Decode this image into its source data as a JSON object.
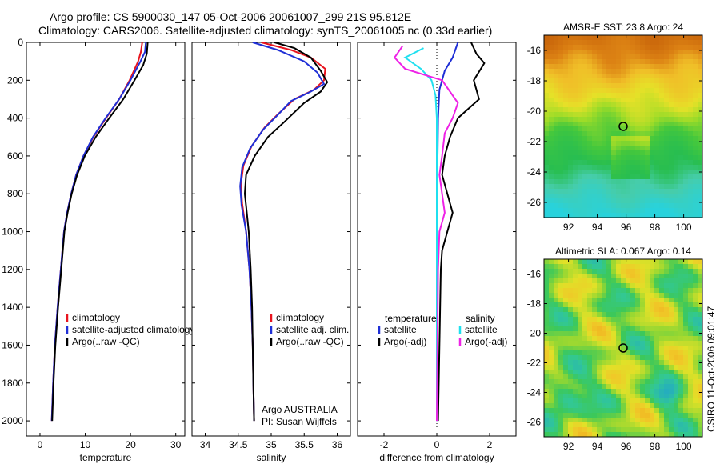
{
  "header": {
    "line1": "Argo profile: CS 5900030_147 05-Oct-2006 20061007_299 21S 95.812E",
    "line2": "Climatology: CARS2006. Satellite-adjusted climatology: synTS_20061005.nc (0.33d earlier)"
  },
  "side_label": "CSIRO 11-Oct-2006 09:01:47",
  "colors": {
    "climatology": "#e8141e",
    "satellite": "#1f2fd6",
    "argo": "#000000",
    "salinity_sat": "#1fe0ef",
    "salinity_argo": "#ee22e6"
  },
  "chart_data": [
    {
      "type": "line",
      "xlabel": "temperature",
      "ylabel": "",
      "xlim": [
        -3,
        32
      ],
      "ylim": [
        2080,
        0
      ],
      "y_reversed": true,
      "x_ticks": [
        0,
        10,
        20,
        30
      ],
      "y_ticks": [
        0,
        200,
        400,
        600,
        800,
        1000,
        1200,
        1400,
        1600,
        1800,
        2000
      ],
      "legend": [
        "climatology",
        "satellite-adjusted climatology",
        "Argo(..raw -QC)"
      ],
      "series": [
        {
          "name": "climatology",
          "color": "#e8141e",
          "points": [
            [
              22.6,
              0
            ],
            [
              22.3,
              50
            ],
            [
              21.7,
              100
            ],
            [
              19.8,
              200
            ],
            [
              17.5,
              300
            ],
            [
              14.6,
              400
            ],
            [
              11.8,
              500
            ],
            [
              9.6,
              600
            ],
            [
              8,
              700
            ],
            [
              6.9,
              800
            ],
            [
              6,
              900
            ],
            [
              5.3,
              1000
            ],
            [
              4.6,
              1200
            ],
            [
              3.9,
              1400
            ],
            [
              3.3,
              1600
            ],
            [
              2.9,
              1800
            ],
            [
              2.6,
              2000
            ]
          ]
        },
        {
          "name": "satellite-adjusted climatology",
          "color": "#1f2fd6",
          "points": [
            [
              23.4,
              0
            ],
            [
              23.2,
              50
            ],
            [
              22.2,
              100
            ],
            [
              20,
              200
            ],
            [
              17.5,
              300
            ],
            [
              14.5,
              400
            ],
            [
              11.7,
              500
            ],
            [
              9.6,
              600
            ],
            [
              8,
              700
            ],
            [
              6.9,
              800
            ],
            [
              6,
              900
            ],
            [
              5.3,
              1000
            ],
            [
              4.6,
              1200
            ],
            [
              3.9,
              1400
            ],
            [
              3.3,
              1600
            ],
            [
              2.9,
              1800
            ],
            [
              2.6,
              2000
            ]
          ]
        },
        {
          "name": "Argo(..raw -QC)",
          "color": "#000000",
          "points": [
            [
              23.8,
              0
            ],
            [
              23.6,
              60
            ],
            [
              22.8,
              120
            ],
            [
              20.9,
              200
            ],
            [
              18.4,
              300
            ],
            [
              15.3,
              400
            ],
            [
              12.3,
              500
            ],
            [
              9.9,
              600
            ],
            [
              8.2,
              700
            ],
            [
              7,
              800
            ],
            [
              6.1,
              900
            ],
            [
              5.4,
              1000
            ],
            [
              4.7,
              1200
            ],
            [
              4,
              1400
            ],
            [
              3.4,
              1600
            ],
            [
              3,
              1800
            ],
            [
              2.7,
              2000
            ]
          ]
        }
      ]
    },
    {
      "type": "line",
      "xlabel": "salinity",
      "ylabel": "",
      "xlim": [
        33.8,
        36.2
      ],
      "ylim": [
        2080,
        0
      ],
      "y_reversed": true,
      "x_ticks": [
        34,
        34.5,
        35,
        35.5,
        36
      ],
      "legend": [
        "climatology",
        "satellite adj. clim.",
        "Argo(..raw -QC)"
      ],
      "annotation": [
        "Argo AUSTRALIA",
        "PI: Susan Wijffels"
      ],
      "series": [
        {
          "name": "climatology",
          "color": "#e8141e",
          "points": [
            [
              34.85,
              0
            ],
            [
              35.3,
              40
            ],
            [
              35.6,
              80
            ],
            [
              35.82,
              140
            ],
            [
              35.8,
              200
            ],
            [
              35.65,
              250
            ],
            [
              35.35,
              300
            ],
            [
              35.1,
              380
            ],
            [
              34.9,
              450
            ],
            [
              34.7,
              550
            ],
            [
              34.58,
              650
            ],
            [
              34.54,
              750
            ],
            [
              34.56,
              850
            ],
            [
              34.62,
              1000
            ],
            [
              34.67,
              1200
            ],
            [
              34.7,
              1400
            ],
            [
              34.72,
              1600
            ],
            [
              34.73,
              1800
            ],
            [
              34.74,
              2000
            ]
          ]
        },
        {
          "name": "satellite adj. clim.",
          "color": "#1f2fd6",
          "points": [
            [
              34.72,
              0
            ],
            [
              35.1,
              40
            ],
            [
              35.5,
              100
            ],
            [
              35.7,
              160
            ],
            [
              35.8,
              220
            ],
            [
              35.6,
              260
            ],
            [
              35.3,
              310
            ],
            [
              35.08,
              390
            ],
            [
              34.88,
              460
            ],
            [
              34.68,
              560
            ],
            [
              34.56,
              660
            ],
            [
              34.53,
              760
            ],
            [
              34.55,
              860
            ],
            [
              34.62,
              1000
            ],
            [
              34.67,
              1200
            ],
            [
              34.7,
              1400
            ],
            [
              34.72,
              1600
            ],
            [
              34.73,
              1800
            ],
            [
              34.74,
              2000
            ]
          ]
        },
        {
          "name": "Argo(..raw -QC)",
          "color": "#000000",
          "points": [
            [
              35.05,
              0
            ],
            [
              35.35,
              30
            ],
            [
              35.6,
              80
            ],
            [
              35.75,
              150
            ],
            [
              35.85,
              210
            ],
            [
              35.75,
              260
            ],
            [
              35.5,
              320
            ],
            [
              35.2,
              420
            ],
            [
              34.95,
              500
            ],
            [
              34.75,
              600
            ],
            [
              34.62,
              700
            ],
            [
              34.6,
              800
            ],
            [
              34.63,
              900
            ],
            [
              34.66,
              1000
            ],
            [
              34.69,
              1200
            ],
            [
              34.71,
              1400
            ],
            [
              34.72,
              1600
            ],
            [
              34.73,
              1800
            ],
            [
              34.74,
              2000
            ]
          ]
        }
      ]
    },
    {
      "type": "line",
      "xlabel": "difference from climatology",
      "ylabel": "",
      "xlim": [
        -3,
        3
      ],
      "ylim": [
        2080,
        0
      ],
      "y_reversed": true,
      "x_ticks": [
        -2,
        0,
        2
      ],
      "legend": [
        "temperature",
        "satellite",
        "Argo(-adj)",
        "salinity",
        "satellite",
        "Argo(-adj)"
      ],
      "series": [
        {
          "name": "temperature satellite",
          "color": "#1f2fd6",
          "points": [
            [
              0.8,
              0
            ],
            [
              0.6,
              80
            ],
            [
              0.3,
              150
            ],
            [
              0.1,
              250
            ],
            [
              0.05,
              400
            ],
            [
              0.02,
              700
            ],
            [
              0,
              1000
            ],
            [
              0,
              2000
            ]
          ]
        },
        {
          "name": "temperature Argo(-adj)",
          "color": "#000000",
          "points": [
            [
              1.3,
              0
            ],
            [
              1.5,
              60
            ],
            [
              1.8,
              110
            ],
            [
              1.4,
              200
            ],
            [
              1.6,
              300
            ],
            [
              0.8,
              400
            ],
            [
              0.5,
              500
            ],
            [
              0.3,
              600
            ],
            [
              0.2,
              700
            ],
            [
              0.4,
              800
            ],
            [
              0.6,
              900
            ],
            [
              0.4,
              1000
            ],
            [
              0.2,
              1100
            ],
            [
              0.15,
              1200
            ],
            [
              0.1,
              1600
            ],
            [
              0.05,
              2000
            ]
          ]
        },
        {
          "name": "salinity satellite",
          "color": "#1fe0ef",
          "points": [
            [
              -0.5,
              30
            ],
            [
              -1.2,
              80
            ],
            [
              -0.6,
              140
            ],
            [
              -0.2,
              200
            ],
            [
              -0.05,
              280
            ],
            [
              0,
              400
            ],
            [
              0,
              1000
            ],
            [
              0,
              2000
            ]
          ]
        },
        {
          "name": "salinity Argo(-adj)",
          "color": "#ee22e6",
          "points": [
            [
              -1.3,
              20
            ],
            [
              -1.6,
              80
            ],
            [
              -1.2,
              140
            ],
            [
              0.2,
              200
            ],
            [
              0.5,
              260
            ],
            [
              0.8,
              320
            ],
            [
              0.6,
              400
            ],
            [
              0.3,
              480
            ],
            [
              0.2,
              600
            ],
            [
              0.1,
              700
            ],
            [
              0.2,
              800
            ],
            [
              0.3,
              900
            ],
            [
              0.1,
              1000
            ],
            [
              0.05,
              1200
            ],
            [
              0,
              2000
            ]
          ]
        }
      ]
    },
    {
      "type": "heatmap",
      "title": "AMSR-E SST: 23.8 Argo: 24",
      "x_ticks": [
        92,
        94,
        96,
        98,
        100
      ],
      "y_ticks": [
        -16,
        -18,
        -20,
        -22,
        -24,
        -26
      ],
      "xlim": [
        90.3,
        101.3
      ],
      "ylim": [
        -27,
        -15
      ],
      "marker": [
        95.8,
        -21
      ]
    },
    {
      "type": "heatmap",
      "title": "Altimetric SLA: 0.067 Argo: 0.14",
      "x_ticks": [
        92,
        94,
        96,
        98,
        100
      ],
      "y_ticks": [
        -16,
        -18,
        -20,
        -22,
        -24,
        -26
      ],
      "xlim": [
        90.3,
        101.3
      ],
      "ylim": [
        -27,
        -15
      ],
      "marker": [
        95.8,
        -21
      ]
    }
  ]
}
